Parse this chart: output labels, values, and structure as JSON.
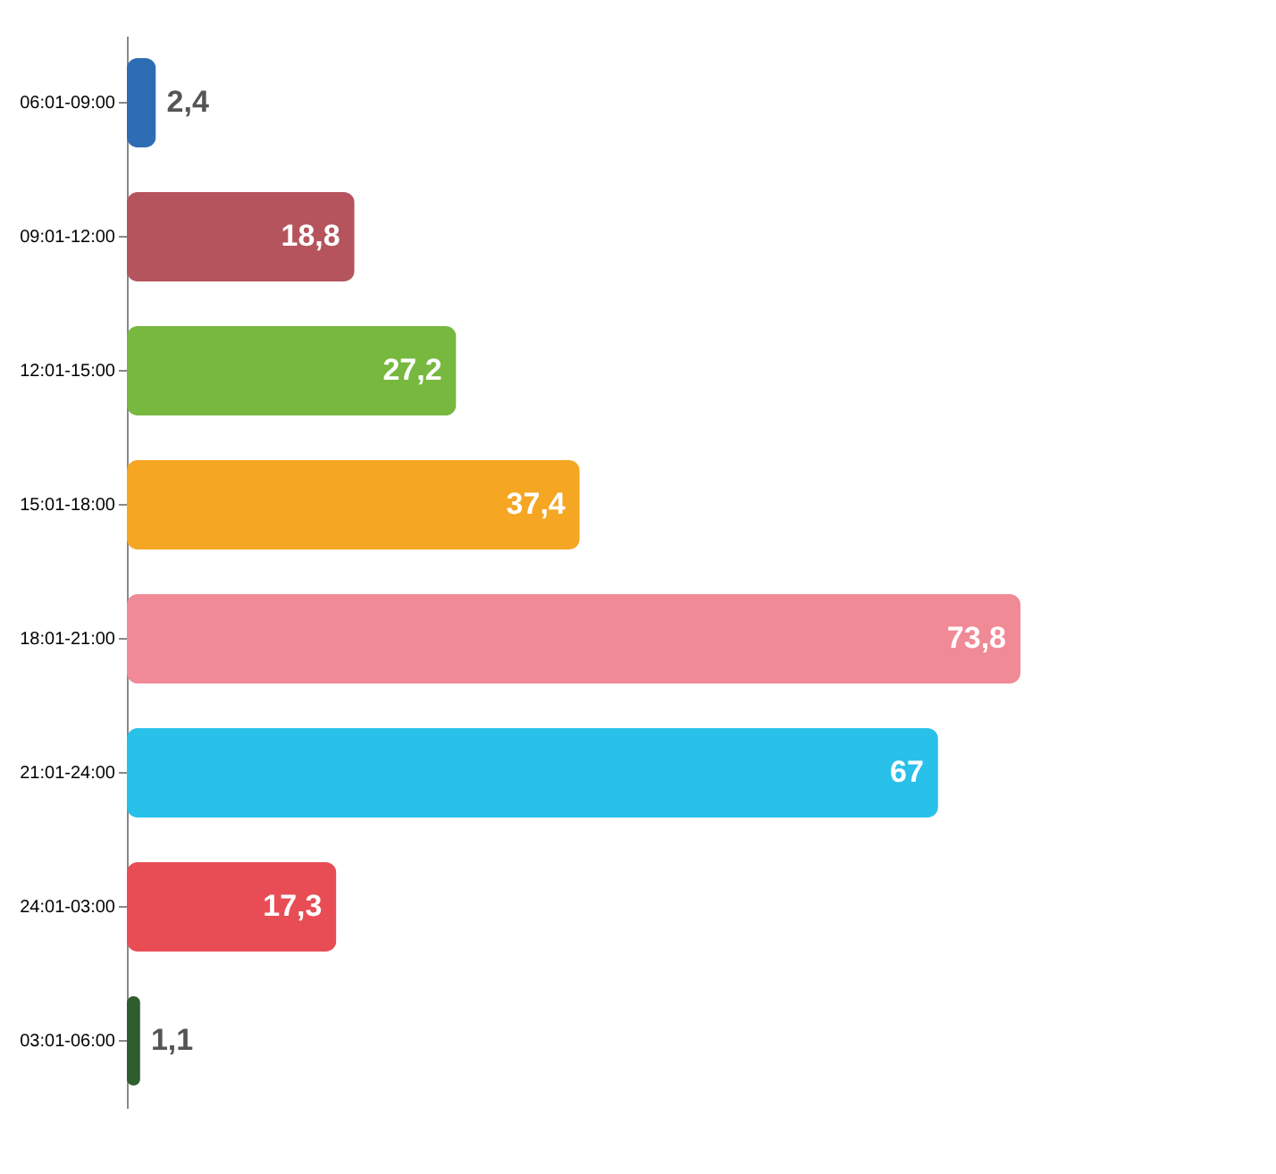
{
  "chart_data": {
    "type": "bar",
    "orientation": "horizontal",
    "categories": [
      "06:01-09:00",
      "09:01-12:00",
      "12:01-15:00",
      "15:01-18:00",
      "18:01-21:00",
      "21:01-24:00",
      "24:01-03:00",
      "03:01-06:00"
    ],
    "values": [
      2.4,
      18.8,
      27.2,
      37.4,
      73.8,
      67,
      17.3,
      1.1
    ],
    "value_labels": [
      "2,4",
      "18,8",
      "27,2",
      "37,4",
      "73,8",
      "67",
      "17,3",
      "1,1"
    ],
    "colors": [
      "#2e6db4",
      "#b5545c",
      "#77b83f",
      "#f5a623",
      "#f08a96",
      "#29c0ea",
      "#e84d55",
      "#2f5e2e"
    ],
    "legend": false
  }
}
